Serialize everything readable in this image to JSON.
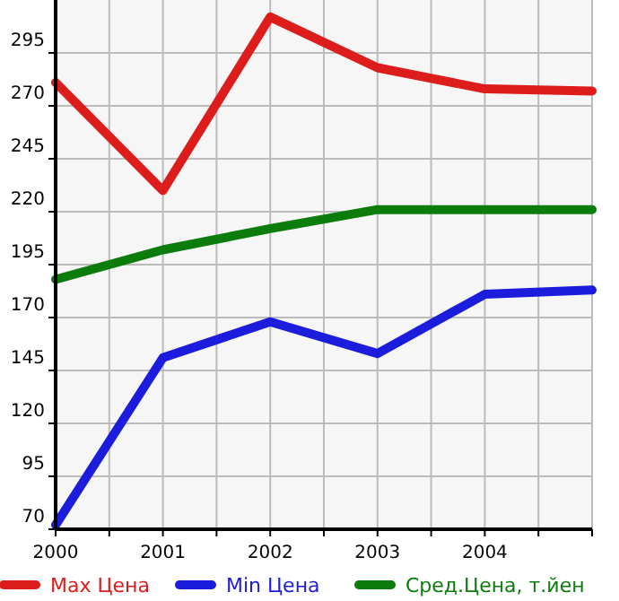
{
  "chart_data": {
    "type": "line",
    "x": [
      2000,
      2001,
      2002,
      2003,
      2004,
      2005
    ],
    "series": [
      {
        "name": "Max Цена",
        "color": "#dd1c1c",
        "values": [
          281,
          230,
          312,
          288,
          278,
          277
        ]
      },
      {
        "name": "Min Цена",
        "color": "#1c1cdd",
        "values": [
          72,
          151,
          168,
          153,
          181,
          183
        ]
      },
      {
        "name": "Сред.Цена, т.йен",
        "color": "#0c7c0c",
        "values": [
          188,
          202,
          212,
          221,
          221,
          221
        ]
      }
    ],
    "xlim": [
      2000,
      2005
    ],
    "xticks": [
      2000,
      {
        "value": 2000.5,
        "label": null
      },
      2001,
      {
        "value": 2001.5,
        "label": null
      },
      2002,
      {
        "value": 2002.5,
        "label": null
      },
      2003,
      {
        "value": 2003.5,
        "label": null
      },
      2004,
      {
        "value": 2004.5,
        "label": null
      },
      {
        "value": 2005,
        "label": null
      }
    ],
    "ylim": [
      70,
      320
    ],
    "yticks": [
      70,
      95,
      120,
      145,
      170,
      195,
      220,
      245,
      270,
      295
    ],
    "grid": true,
    "legend": "bottom",
    "marker": "none",
    "line_style": "solid"
  }
}
